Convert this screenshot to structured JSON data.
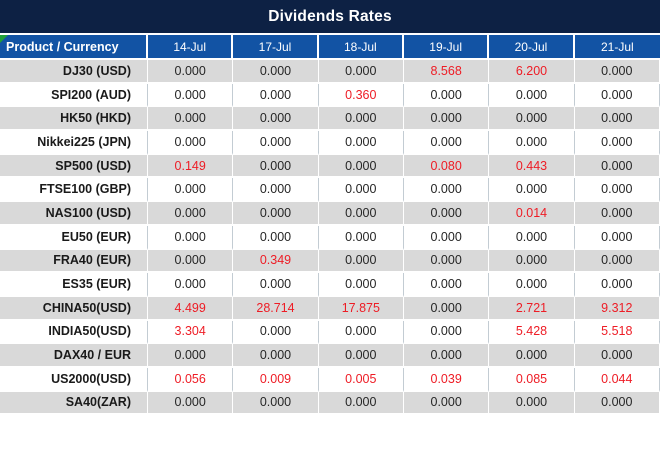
{
  "title": "Dividends Rates",
  "colors": {
    "title_bar_bg": "#0d2144",
    "header_row_bg": "#1253a4",
    "header_text": "#ffffff",
    "row_odd_bg": "#d9d9d9",
    "row_even_bg": "#ffffff",
    "value_text": "#262626",
    "value_highlight_red": "#ee1c25",
    "corner_flag_green": "#21a038"
  },
  "chart_data": {
    "type": "table",
    "title": "Dividends Rates",
    "columns": [
      "Product / Currency",
      "14-Jul",
      "17-Jul",
      "18-Jul",
      "19-Jul",
      "20-Jul",
      "21-Jul"
    ],
    "rows": [
      {
        "product": "DJ30 (USD)",
        "values": [
          "0.000",
          "0.000",
          "0.000",
          "8.568",
          "6.200",
          "0.000"
        ],
        "red": [
          false,
          false,
          false,
          true,
          true,
          false
        ]
      },
      {
        "product": "SPI200 (AUD)",
        "values": [
          "0.000",
          "0.000",
          "0.360",
          "0.000",
          "0.000",
          "0.000"
        ],
        "red": [
          false,
          false,
          true,
          false,
          false,
          false
        ]
      },
      {
        "product": "HK50 (HKD)",
        "values": [
          "0.000",
          "0.000",
          "0.000",
          "0.000",
          "0.000",
          "0.000"
        ],
        "red": [
          false,
          false,
          false,
          false,
          false,
          false
        ]
      },
      {
        "product": "Nikkei225 (JPN)",
        "values": [
          "0.000",
          "0.000",
          "0.000",
          "0.000",
          "0.000",
          "0.000"
        ],
        "red": [
          false,
          false,
          false,
          false,
          false,
          false
        ]
      },
      {
        "product": "SP500 (USD)",
        "values": [
          "0.149",
          "0.000",
          "0.000",
          "0.080",
          "0.443",
          "0.000"
        ],
        "red": [
          true,
          false,
          false,
          true,
          true,
          false
        ]
      },
      {
        "product": "FTSE100 (GBP)",
        "values": [
          "0.000",
          "0.000",
          "0.000",
          "0.000",
          "0.000",
          "0.000"
        ],
        "red": [
          false,
          false,
          false,
          false,
          false,
          false
        ]
      },
      {
        "product": "NAS100 (USD)",
        "values": [
          "0.000",
          "0.000",
          "0.000",
          "0.000",
          "0.014",
          "0.000"
        ],
        "red": [
          false,
          false,
          false,
          false,
          true,
          false
        ]
      },
      {
        "product": "EU50 (EUR)",
        "values": [
          "0.000",
          "0.000",
          "0.000",
          "0.000",
          "0.000",
          "0.000"
        ],
        "red": [
          false,
          false,
          false,
          false,
          false,
          false
        ]
      },
      {
        "product": "FRA40 (EUR)",
        "values": [
          "0.000",
          "0.349",
          "0.000",
          "0.000",
          "0.000",
          "0.000"
        ],
        "red": [
          false,
          true,
          false,
          false,
          false,
          false
        ]
      },
      {
        "product": "ES35 (EUR)",
        "values": [
          "0.000",
          "0.000",
          "0.000",
          "0.000",
          "0.000",
          "0.000"
        ],
        "red": [
          false,
          false,
          false,
          false,
          false,
          false
        ]
      },
      {
        "product": "CHINA50(USD)",
        "values": [
          "4.499",
          "28.714",
          "17.875",
          "0.000",
          "2.721",
          "9.312"
        ],
        "red": [
          true,
          true,
          true,
          false,
          true,
          true
        ]
      },
      {
        "product": "INDIA50(USD)",
        "values": [
          "3.304",
          "0.000",
          "0.000",
          "0.000",
          "5.428",
          "5.518"
        ],
        "red": [
          true,
          false,
          false,
          false,
          true,
          true
        ]
      },
      {
        "product": "DAX40 / EUR",
        "values": [
          "0.000",
          "0.000",
          "0.000",
          "0.000",
          "0.000",
          "0.000"
        ],
        "red": [
          false,
          false,
          false,
          false,
          false,
          false
        ]
      },
      {
        "product": "US2000(USD)",
        "values": [
          "0.056",
          "0.009",
          "0.005",
          "0.039",
          "0.085",
          "0.044"
        ],
        "red": [
          true,
          true,
          true,
          true,
          true,
          true
        ]
      },
      {
        "product": "SA40(ZAR)",
        "values": [
          "0.000",
          "0.000",
          "0.000",
          "0.000",
          "0.000",
          "0.000"
        ],
        "red": [
          false,
          false,
          false,
          false,
          false,
          false
        ]
      }
    ]
  }
}
